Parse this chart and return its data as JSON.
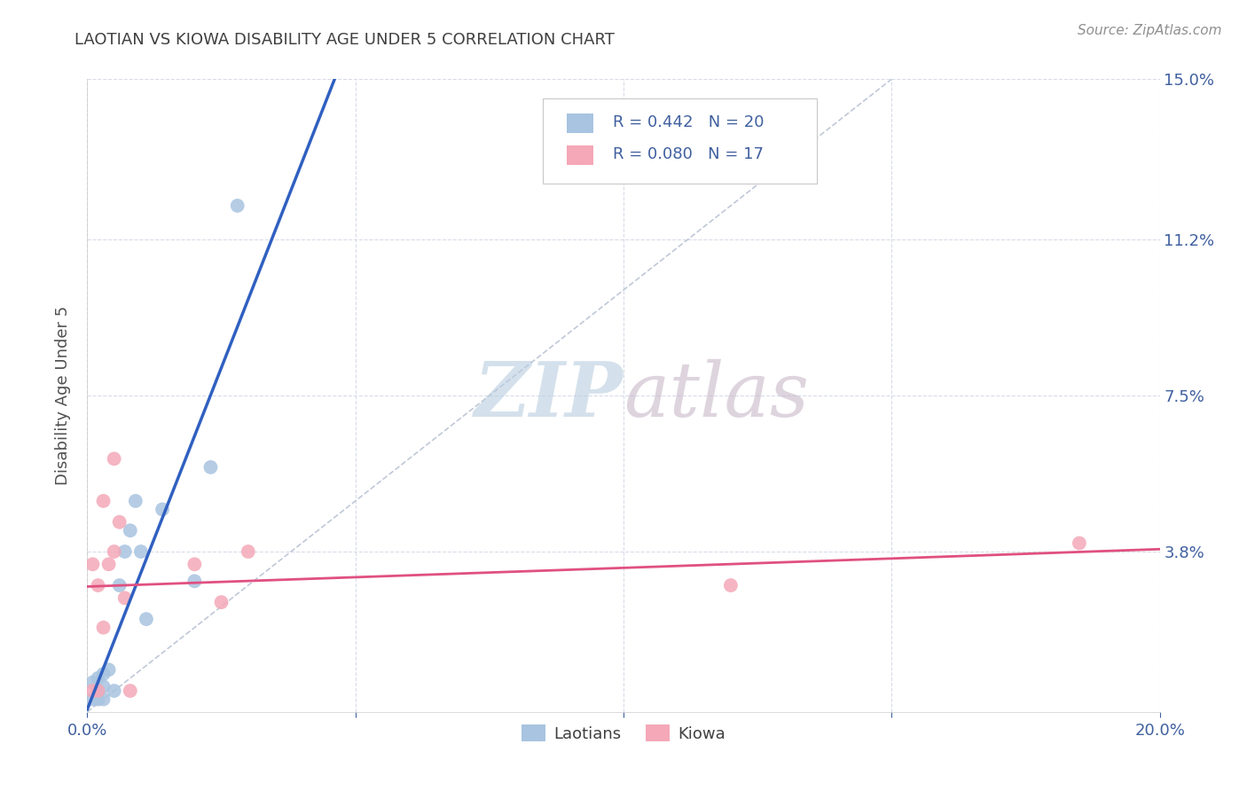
{
  "title": "LAOTIAN VS KIOWA DISABILITY AGE UNDER 5 CORRELATION CHART",
  "source": "Source: ZipAtlas.com",
  "ylabel": "Disability Age Under 5",
  "xlim": [
    0.0,
    0.2
  ],
  "ylim": [
    0.0,
    0.15
  ],
  "R_laotian": 0.442,
  "N_laotian": 20,
  "R_kiowa": 0.08,
  "N_kiowa": 17,
  "laotian_color": "#a8c4e0",
  "kiowa_color": "#f4a8b8",
  "laotian_line_color": "#3060c0",
  "kiowa_line_color": "#e05080",
  "diagonal_color": "#c0c8d8",
  "background_color": "#ffffff",
  "grid_color": "#d8dce8",
  "watermark_color": "#d0dce8",
  "title_color": "#404040",
  "axis_label_color": "#4060a0",
  "laotian_x": [
    0.001,
    0.001,
    0.002,
    0.002,
    0.002,
    0.003,
    0.003,
    0.003,
    0.004,
    0.005,
    0.006,
    0.007,
    0.008,
    0.009,
    0.01,
    0.011,
    0.014,
    0.02,
    0.023,
    0.028
  ],
  "laotian_y": [
    0.003,
    0.007,
    0.003,
    0.005,
    0.008,
    0.003,
    0.006,
    0.009,
    0.01,
    0.005,
    0.03,
    0.038,
    0.043,
    0.05,
    0.038,
    0.022,
    0.048,
    0.031,
    0.058,
    0.12
  ],
  "kiowa_x": [
    0.001,
    0.001,
    0.002,
    0.002,
    0.003,
    0.003,
    0.004,
    0.005,
    0.005,
    0.006,
    0.007,
    0.008,
    0.02,
    0.025,
    0.03,
    0.12,
    0.185
  ],
  "kiowa_y": [
    0.005,
    0.035,
    0.005,
    0.03,
    0.02,
    0.05,
    0.035,
    0.038,
    0.06,
    0.045,
    0.027,
    0.005,
    0.035,
    0.026,
    0.038,
    0.03,
    0.04
  ],
  "marker_size": 130
}
